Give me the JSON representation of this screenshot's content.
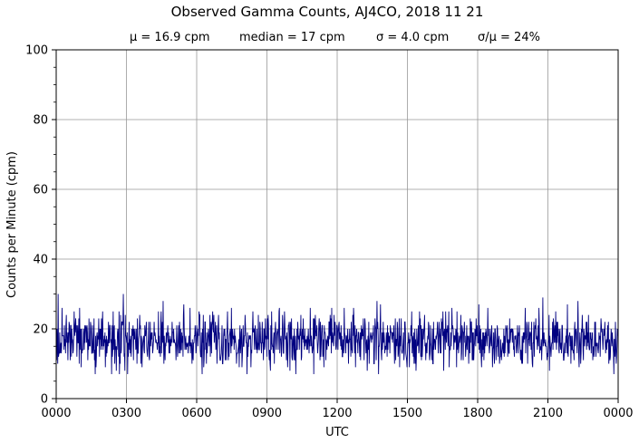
{
  "chart_data": {
    "type": "line",
    "title": "Observed Gamma Counts, AJ4CO, 2018 11 21",
    "stats": {
      "mean": "μ = 16.9 cpm",
      "median": "median = 17 cpm",
      "sigma": "σ = 4.0 cpm",
      "ratio": "σ/μ = 24%"
    },
    "xlabel": "UTC",
    "ylabel": "Counts per Minute (cpm)",
    "x_ticks": [
      "0000",
      "0300",
      "0600",
      "0900",
      "1200",
      "1500",
      "1800",
      "2100",
      "0000"
    ],
    "y_ticks": [
      "0",
      "20",
      "40",
      "60",
      "80",
      "100"
    ],
    "xlim_minutes": [
      0,
      1440
    ],
    "ylim": [
      0,
      100
    ],
    "grid": true,
    "series": [
      {
        "color": "#000080",
        "sample_interval_minutes": 1,
        "distribution": {
          "mean": 16.9,
          "median": 17,
          "sigma": 4.0,
          "min": 7,
          "max": 30
        }
      }
    ]
  }
}
